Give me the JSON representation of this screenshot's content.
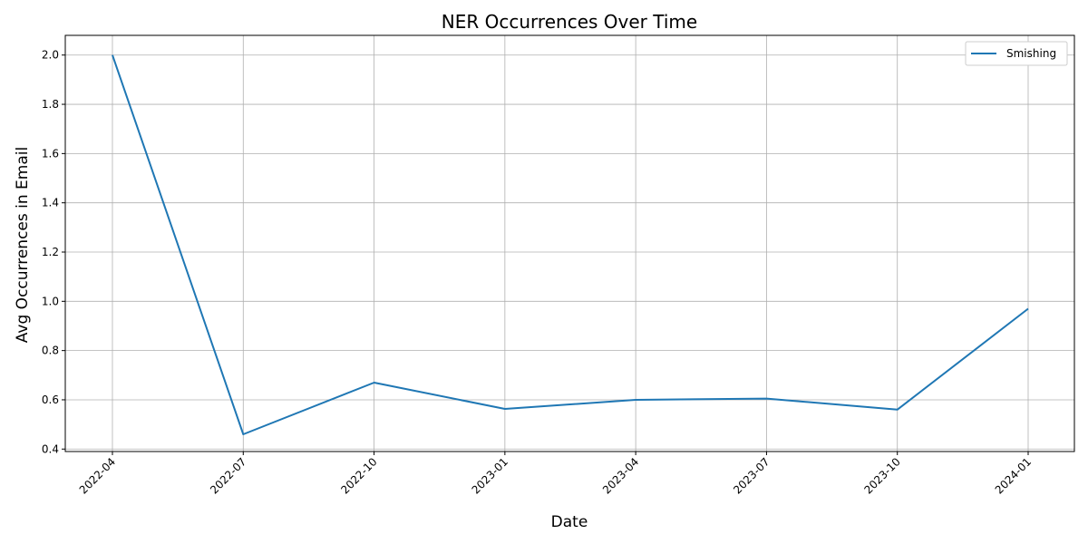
{
  "chart_data": {
    "type": "line",
    "title": "NER Occurrences Over Time",
    "xlabel": "Date",
    "ylabel": "Avg Occurrences in Email",
    "x": [
      "2022-04",
      "2022-07",
      "2022-10",
      "2023-01",
      "2023-04",
      "2023-07",
      "2023-10",
      "2024-01"
    ],
    "x_tick_labels": [
      "2022-04",
      "2022-07",
      "2022-10",
      "2023-01",
      "2023-04",
      "2023-07",
      "2023-10",
      "2024-01"
    ],
    "y_tick_labels": [
      "0.4",
      "0.6",
      "0.8",
      "1.0",
      "1.2",
      "1.4",
      "1.6",
      "1.8",
      "2.0"
    ],
    "ylim": [
      0.39,
      2.08
    ],
    "grid": true,
    "legend_position": "top-right",
    "series": [
      {
        "name": "Smishing",
        "color": "#1f77b4",
        "values": [
          2.0,
          0.46,
          0.67,
          0.563,
          0.6,
          0.605,
          0.56,
          0.97
        ]
      }
    ]
  }
}
